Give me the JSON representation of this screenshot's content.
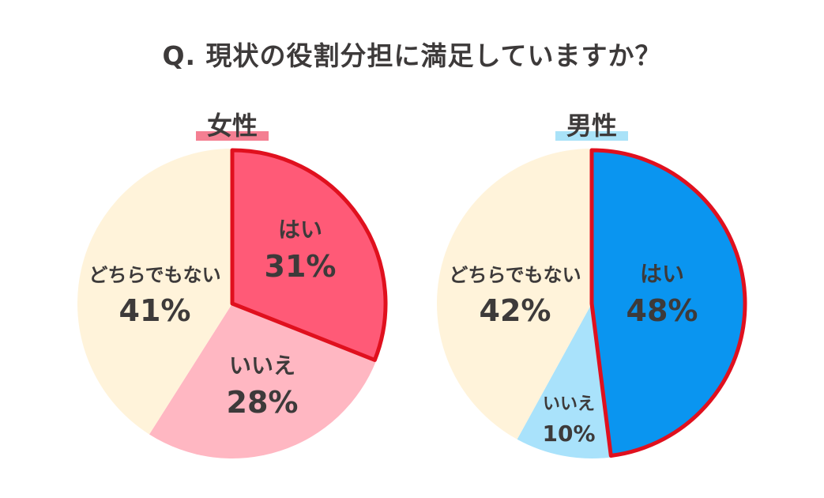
{
  "question": "Q. 現状の役割分担に満足していますか？",
  "charts": [
    {
      "label": "女性",
      "label_color": "#f47f92"
    },
    {
      "label": "男性",
      "label_color": "#a9e2f8"
    }
  ],
  "highlight_stroke": "#e0101e",
  "chart_data": [
    {
      "type": "pie",
      "title": "女性",
      "start": "12 o'clock",
      "direction": "clockwise",
      "slices": [
        {
          "name": "はい",
          "value": 31,
          "label": "31%",
          "color": "#ff5a77",
          "highlighted": true
        },
        {
          "name": "いいえ",
          "value": 28,
          "label": "28%",
          "color": "#ffb7c2",
          "highlighted": false
        },
        {
          "name": "どちらでもない",
          "value": 41,
          "label": "41%",
          "color": "#fff3da",
          "highlighted": false
        }
      ]
    },
    {
      "type": "pie",
      "title": "男性",
      "start": "12 o'clock",
      "direction": "clockwise",
      "slices": [
        {
          "name": "はい",
          "value": 48,
          "label": "48%",
          "color": "#0a95f0",
          "highlighted": true
        },
        {
          "name": "いいえ",
          "value": 10,
          "label": "10%",
          "color": "#a9e2fb",
          "highlighted": false
        },
        {
          "name": "どちらでもない",
          "value": 42,
          "label": "42%",
          "color": "#fff3da",
          "highlighted": false
        }
      ]
    }
  ]
}
